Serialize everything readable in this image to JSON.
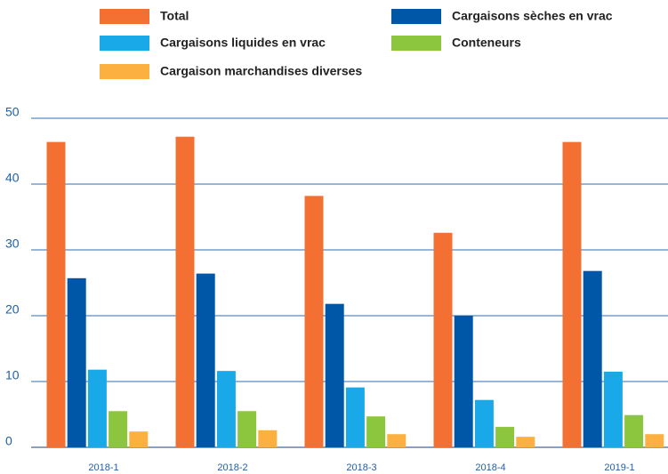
{
  "chart_data": {
    "type": "bar",
    "categories": [
      "2018-1",
      "2018-2",
      "2018-3",
      "2018-4",
      "2019-1"
    ],
    "series": [
      {
        "name": "Total",
        "color": "#f36f32",
        "values": [
          46.4,
          47.2,
          38.2,
          32.6,
          46.4
        ]
      },
      {
        "name": "Cargaisons sèches en vrac",
        "color": "#0057a8",
        "values": [
          25.7,
          26.4,
          21.8,
          20.0,
          26.8
        ]
      },
      {
        "name": "Cargaisons liquides en vrac",
        "color": "#1aa9e8",
        "values": [
          11.8,
          11.6,
          9.1,
          7.2,
          11.5
        ]
      },
      {
        "name": "Conteneurs",
        "color": "#8cc63f",
        "values": [
          5.5,
          5.5,
          4.7,
          3.1,
          4.9
        ]
      },
      {
        "name": "Cargaison marchandises diverses",
        "color": "#fbb040",
        "values": [
          2.4,
          2.6,
          2.0,
          1.6,
          2.0
        ]
      }
    ],
    "ylim": [
      0,
      50
    ],
    "yticks": [
      0,
      10,
      20,
      30,
      40,
      50
    ],
    "grid": true,
    "legend": "top"
  }
}
